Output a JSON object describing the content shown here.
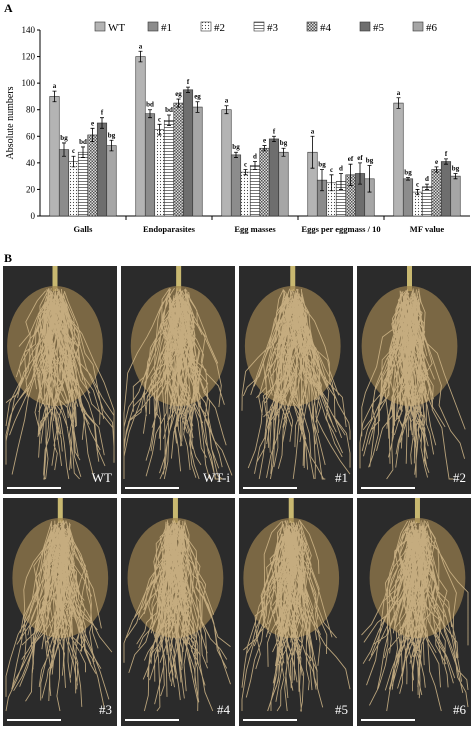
{
  "chart_data": {
    "type": "bar",
    "panel_label": "A",
    "y_label": "Absolute numbers",
    "categories": [
      "Galls",
      "Endoparasites",
      "Egg masses",
      "Eggs per eggmass / 10",
      "MF value"
    ],
    "ylim": [
      0,
      140
    ],
    "yticks": [
      0,
      20,
      40,
      60,
      80,
      100,
      120,
      140
    ],
    "series": [
      {
        "name": "WT",
        "color": "#b4b4b4",
        "pattern": "solid",
        "values": [
          90,
          120,
          80,
          48,
          85
        ],
        "errors": [
          4,
          4,
          3,
          12,
          4
        ],
        "letters": [
          "a",
          "a",
          "a",
          "a",
          "a"
        ]
      },
      {
        "name": "#1",
        "color": "#8c8c8c",
        "pattern": "solid",
        "values": [
          50,
          77,
          46,
          27,
          28
        ],
        "errors": [
          5,
          3,
          2,
          8,
          1
        ],
        "letters": [
          "bg",
          "bd",
          "bg",
          "bg",
          "bg"
        ]
      },
      {
        "name": "#2",
        "color": "#ffffff",
        "pattern": "dots",
        "values": [
          41,
          65,
          33,
          25,
          18
        ],
        "errors": [
          4,
          4,
          2,
          6,
          2
        ],
        "letters": [
          "c",
          "c",
          "c",
          "c",
          "c"
        ]
      },
      {
        "name": "#3",
        "color": "#ffffff",
        "pattern": "hlines",
        "values": [
          48,
          72,
          38,
          26,
          22
        ],
        "errors": [
          4,
          4,
          3,
          6,
          2
        ],
        "letters": [
          "bd",
          "bd",
          "d",
          "d",
          "d"
        ]
      },
      {
        "name": "#4",
        "color": "#9a9a9a",
        "pattern": "grid",
        "values": [
          61,
          85,
          51,
          31,
          35
        ],
        "errors": [
          5,
          3,
          2,
          8,
          2
        ],
        "letters": [
          "e",
          "eg",
          "e",
          "ef",
          "e"
        ]
      },
      {
        "name": "#5",
        "color": "#6e6e6e",
        "pattern": "solid",
        "values": [
          70,
          95,
          58,
          32,
          41
        ],
        "errors": [
          4,
          2,
          2,
          8,
          2
        ],
        "letters": [
          "f",
          "f",
          "f",
          "ef",
          "f"
        ]
      },
      {
        "name": "#6",
        "color": "#a6a6a6",
        "pattern": "solid",
        "values": [
          53,
          82,
          48,
          28,
          30
        ],
        "errors": [
          4,
          4,
          3,
          10,
          2
        ],
        "letters": [
          "bg",
          "eg",
          "bg",
          "bg",
          "bg"
        ]
      }
    ]
  },
  "photo_panel": {
    "panel_label": "B",
    "photos": [
      "WT",
      "WT-i",
      "#1",
      "#2",
      "#3",
      "#4",
      "#5",
      "#6"
    ]
  }
}
